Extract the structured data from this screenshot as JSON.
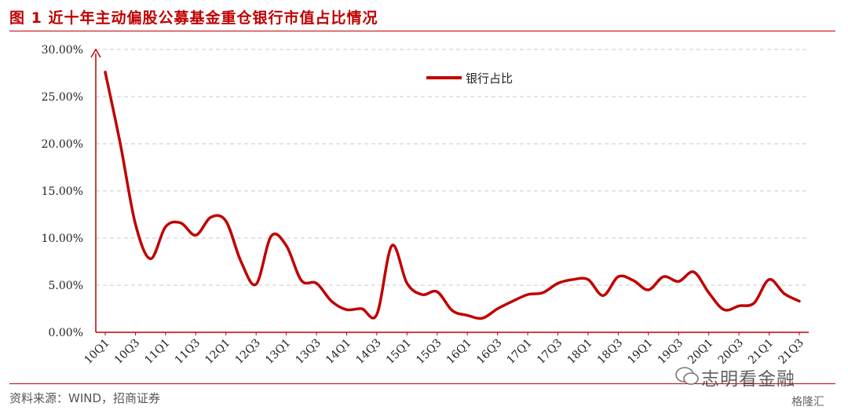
{
  "header": {
    "title": "图 1  近十年主动偏股公募基金重仓银行市值占比情况"
  },
  "footer": {
    "source": "资料来源：WIND，招商证券"
  },
  "watermark": {
    "text": "志明看金融",
    "brand": "格隆汇"
  },
  "colors": {
    "series": "#c00000",
    "grid": "#c8c8c8",
    "axis": "#c00000"
  },
  "chart_data": {
    "type": "line",
    "title": "",
    "xlabel": "",
    "ylabel": "",
    "ylim": [
      0,
      30
    ],
    "yticks": [
      "0.00%",
      "5.00%",
      "10.00%",
      "15.00%",
      "20.00%",
      "25.00%",
      "30.00%"
    ],
    "grid": true,
    "legend_position": "top-center",
    "x": [
      "10Q1",
      "10Q2",
      "10Q3",
      "10Q4",
      "11Q1",
      "11Q2",
      "11Q3",
      "11Q4",
      "12Q1",
      "12Q2",
      "12Q3",
      "12Q4",
      "13Q1",
      "13Q2",
      "13Q3",
      "13Q4",
      "14Q1",
      "14Q2",
      "14Q3",
      "14Q4",
      "15Q1",
      "15Q2",
      "15Q3",
      "15Q4",
      "16Q1",
      "16Q2",
      "16Q3",
      "16Q4",
      "17Q1",
      "17Q2",
      "17Q3",
      "17Q4",
      "18Q1",
      "18Q2",
      "18Q3",
      "18Q4",
      "19Q1",
      "19Q2",
      "19Q3",
      "19Q4",
      "20Q1",
      "20Q2",
      "20Q3",
      "20Q4",
      "21Q1",
      "21Q2",
      "21Q3"
    ],
    "x_tick_labels": [
      "10Q1",
      "10Q3",
      "11Q1",
      "11Q3",
      "12Q1",
      "12Q3",
      "13Q1",
      "13Q3",
      "14Q1",
      "14Q3",
      "15Q1",
      "15Q3",
      "16Q1",
      "16Q3",
      "17Q1",
      "17Q3",
      "18Q1",
      "18Q3",
      "19Q1",
      "19Q3",
      "20Q1",
      "20Q3",
      "21Q1",
      "21Q3"
    ],
    "series": [
      {
        "name": "银行占比",
        "values": [
          27.6,
          20.0,
          11.5,
          7.8,
          11.2,
          11.6,
          10.3,
          12.2,
          11.8,
          7.5,
          5.1,
          10.2,
          9.2,
          5.5,
          5.2,
          3.3,
          2.4,
          2.5,
          1.9,
          9.2,
          5.2,
          4.0,
          4.3,
          2.3,
          1.8,
          1.5,
          2.5,
          3.3,
          4.0,
          4.2,
          5.2,
          5.6,
          5.6,
          3.9,
          5.9,
          5.5,
          4.5,
          5.9,
          5.4,
          6.4,
          4.2,
          2.4,
          2.8,
          3.1,
          5.6,
          4.1,
          3.3
        ]
      }
    ]
  }
}
